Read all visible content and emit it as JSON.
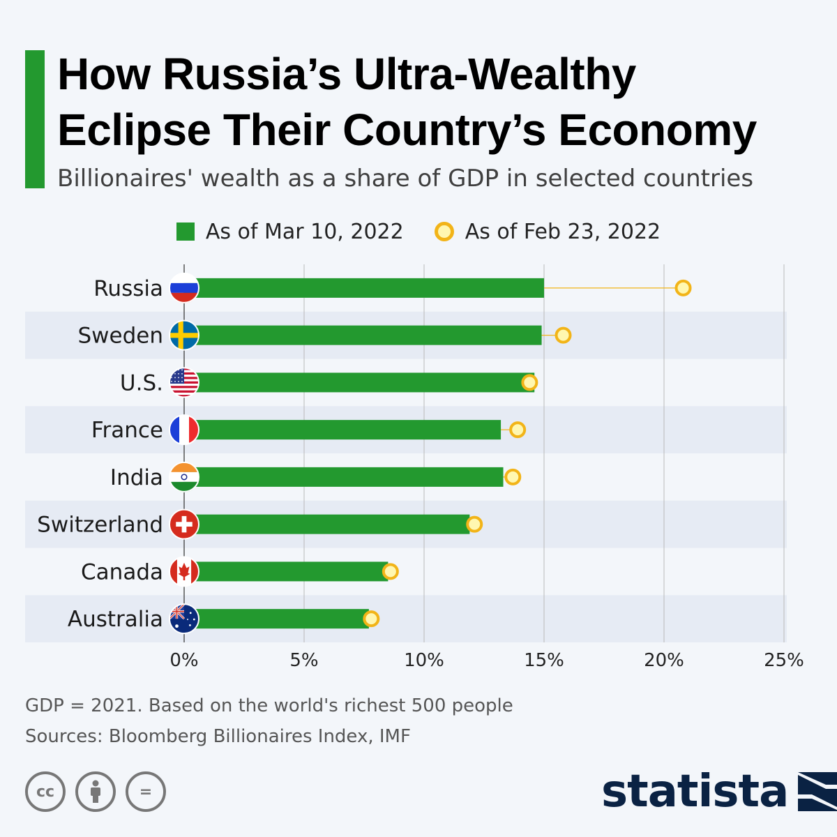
{
  "title_line1": "How Russia’s Ultra-Wealthy",
  "title_line2": "Eclipse Their Country’s Economy",
  "subtitle": "Billionaires' wealth as a share of GDP in selected countries",
  "legend": [
    {
      "label": "As of Mar 10, 2022",
      "marker": "square",
      "color": "#23992f"
    },
    {
      "label": "As of Feb 23, 2022",
      "marker": "dot",
      "color": "#f2b418"
    }
  ],
  "chart_data": {
    "type": "bar",
    "orientation": "horizontal",
    "categories": [
      "Russia",
      "Sweden",
      "U.S.",
      "France",
      "India",
      "Switzerland",
      "Canada",
      "Australia"
    ],
    "flags": [
      "russia-flag-icon",
      "sweden-flag-icon",
      "us-flag-icon",
      "france-flag-icon",
      "india-flag-icon",
      "switzerland-flag-icon",
      "canada-flag-icon",
      "australia-flag-icon"
    ],
    "series": [
      {
        "name": "As of Mar 10, 2022",
        "kind": "bar",
        "color": "#23992f",
        "values": [
          15.0,
          14.9,
          14.6,
          13.2,
          13.3,
          11.9,
          8.5,
          7.7
        ]
      },
      {
        "name": "As of Feb 23, 2022",
        "kind": "dot",
        "color": "#f2b418",
        "values": [
          20.8,
          15.8,
          14.4,
          13.9,
          13.7,
          12.1,
          8.6,
          7.8
        ]
      }
    ],
    "xlim": [
      0,
      25
    ],
    "xticks": [
      0,
      5,
      10,
      15,
      20,
      25
    ],
    "xtick_labels": [
      "0%",
      "5%",
      "10%",
      "15%",
      "20%",
      "25%"
    ],
    "grid": true,
    "alternating_row_bands": true
  },
  "notes": [
    "GDP = 2021. Based on the world's richest 500 people",
    "Sources: Bloomberg Billionaires Index, IMF"
  ],
  "license_icons": [
    {
      "name": "cc-icon",
      "glyph": "cc"
    },
    {
      "name": "attribution-icon",
      "glyph": ""
    },
    {
      "name": "no-derivatives-icon",
      "glyph": "="
    }
  ],
  "logo": {
    "text": "statista"
  }
}
